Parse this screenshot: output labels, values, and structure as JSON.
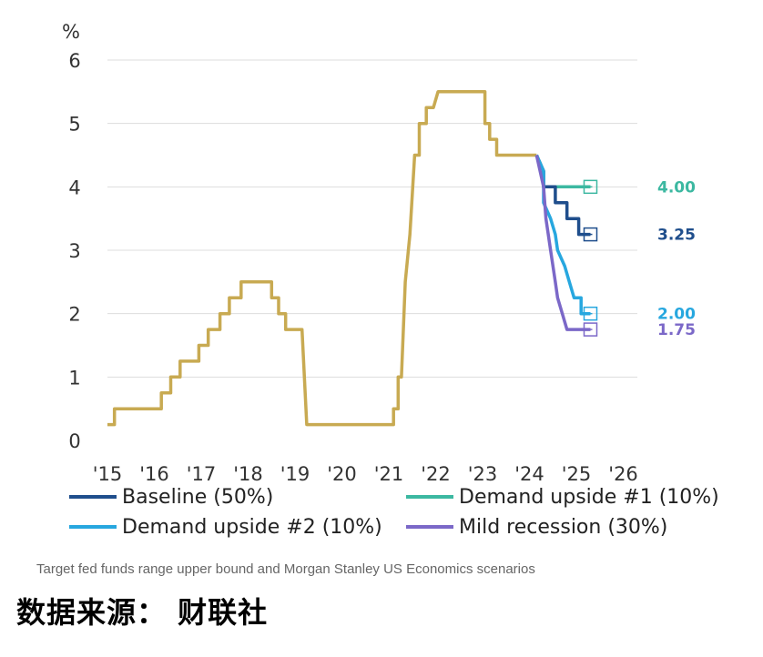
{
  "chart_data": {
    "type": "line",
    "ylabel": "%",
    "ylim": [
      0,
      6
    ],
    "yticks": [
      "0",
      "1",
      "2",
      "3",
      "4",
      "5",
      "6"
    ],
    "xlim": [
      2015,
      2026.3
    ],
    "xticks": [
      {
        "x": 2015,
        "label": "'15"
      },
      {
        "x": 2016,
        "label": "'16"
      },
      {
        "x": 2017,
        "label": "'17"
      },
      {
        "x": 2018,
        "label": "'18"
      },
      {
        "x": 2019,
        "label": "'19"
      },
      {
        "x": 2020,
        "label": "'20"
      },
      {
        "x": 2021,
        "label": "'21"
      },
      {
        "x": 2022,
        "label": "'22"
      },
      {
        "x": 2023,
        "label": "'23"
      },
      {
        "x": 2024,
        "label": "'24"
      },
      {
        "x": 2025,
        "label": "'25"
      },
      {
        "x": 2026,
        "label": "'26"
      }
    ],
    "grid": true,
    "history": {
      "color": "#C8AA52",
      "points": [
        [
          2015.0,
          0.25
        ],
        [
          2015.15,
          0.25
        ],
        [
          2015.15,
          0.5
        ],
        [
          2016.15,
          0.5
        ],
        [
          2016.15,
          0.75
        ],
        [
          2016.35,
          0.75
        ],
        [
          2016.35,
          1.0
        ],
        [
          2016.55,
          1.0
        ],
        [
          2016.55,
          1.25
        ],
        [
          2016.95,
          1.25
        ],
        [
          2016.95,
          1.5
        ],
        [
          2017.15,
          1.5
        ],
        [
          2017.15,
          1.75
        ],
        [
          2017.4,
          1.75
        ],
        [
          2017.4,
          2.0
        ],
        [
          2017.6,
          2.0
        ],
        [
          2017.6,
          2.25
        ],
        [
          2017.85,
          2.25
        ],
        [
          2017.85,
          2.5
        ],
        [
          2018.5,
          2.5
        ],
        [
          2018.5,
          2.25
        ],
        [
          2018.65,
          2.25
        ],
        [
          2018.65,
          2.0
        ],
        [
          2018.8,
          2.0
        ],
        [
          2018.8,
          1.75
        ],
        [
          2019.15,
          1.75
        ],
        [
          2019.25,
          0.25
        ],
        [
          2020.4,
          0.25
        ],
        [
          2021.1,
          0.25
        ],
        [
          2021.1,
          0.5
        ],
        [
          2021.2,
          0.5
        ],
        [
          2021.2,
          1.0
        ],
        [
          2021.27,
          1.0
        ],
        [
          2021.35,
          2.5
        ],
        [
          2021.45,
          3.25
        ],
        [
          2021.55,
          4.5
        ],
        [
          2021.65,
          4.5
        ],
        [
          2021.65,
          5.0
        ],
        [
          2021.8,
          5.0
        ],
        [
          2021.8,
          5.25
        ],
        [
          2021.95,
          5.25
        ],
        [
          2022.05,
          5.5
        ],
        [
          2023.05,
          5.5
        ],
        [
          2023.05,
          5.0
        ],
        [
          2023.15,
          5.0
        ],
        [
          2023.15,
          4.75
        ],
        [
          2023.3,
          4.75
        ],
        [
          2023.3,
          4.5
        ],
        [
          2024.15,
          4.5
        ]
      ]
    },
    "series": [
      {
        "name": "Baseline (50%)",
        "color": "#1F4E8C",
        "end_label": "3.25",
        "points": [
          [
            2024.15,
            4.5
          ],
          [
            2024.3,
            4.25
          ],
          [
            2024.3,
            4.0
          ],
          [
            2024.55,
            4.0
          ],
          [
            2024.55,
            3.75
          ],
          [
            2024.8,
            3.75
          ],
          [
            2024.8,
            3.5
          ],
          [
            2025.05,
            3.5
          ],
          [
            2025.05,
            3.25
          ],
          [
            2025.3,
            3.25
          ]
        ]
      },
      {
        "name": "Demand upside #1 (10%)",
        "color": "#3CB8A1",
        "end_label": "4.00",
        "points": [
          [
            2024.15,
            4.5
          ],
          [
            2024.3,
            4.25
          ],
          [
            2024.3,
            4.0
          ],
          [
            2025.3,
            4.0
          ]
        ]
      },
      {
        "name": "Demand upside #2 (10%)",
        "color": "#27A7DF",
        "end_label": "2.00",
        "points": [
          [
            2024.15,
            4.5
          ],
          [
            2024.3,
            4.25
          ],
          [
            2024.3,
            3.75
          ],
          [
            2024.45,
            3.5
          ],
          [
            2024.55,
            3.25
          ],
          [
            2024.6,
            3.0
          ],
          [
            2024.75,
            2.75
          ],
          [
            2024.85,
            2.5
          ],
          [
            2024.95,
            2.25
          ],
          [
            2025.1,
            2.25
          ],
          [
            2025.1,
            2.0
          ],
          [
            2025.3,
            2.0
          ]
        ]
      },
      {
        "name": "Mild recession (30%)",
        "color": "#7B68C8",
        "end_label": "1.75",
        "points": [
          [
            2024.15,
            4.5
          ],
          [
            2024.3,
            4.0
          ],
          [
            2024.35,
            3.5
          ],
          [
            2024.45,
            3.0
          ],
          [
            2024.55,
            2.5
          ],
          [
            2024.6,
            2.25
          ],
          [
            2024.7,
            2.0
          ],
          [
            2024.8,
            1.75
          ],
          [
            2025.3,
            1.75
          ]
        ]
      }
    ],
    "legend_placement": "bottom"
  },
  "caption": "Target fed funds range upper bound and Morgan Stanley US Economics scenarios",
  "source": "数据来源： 财联社"
}
